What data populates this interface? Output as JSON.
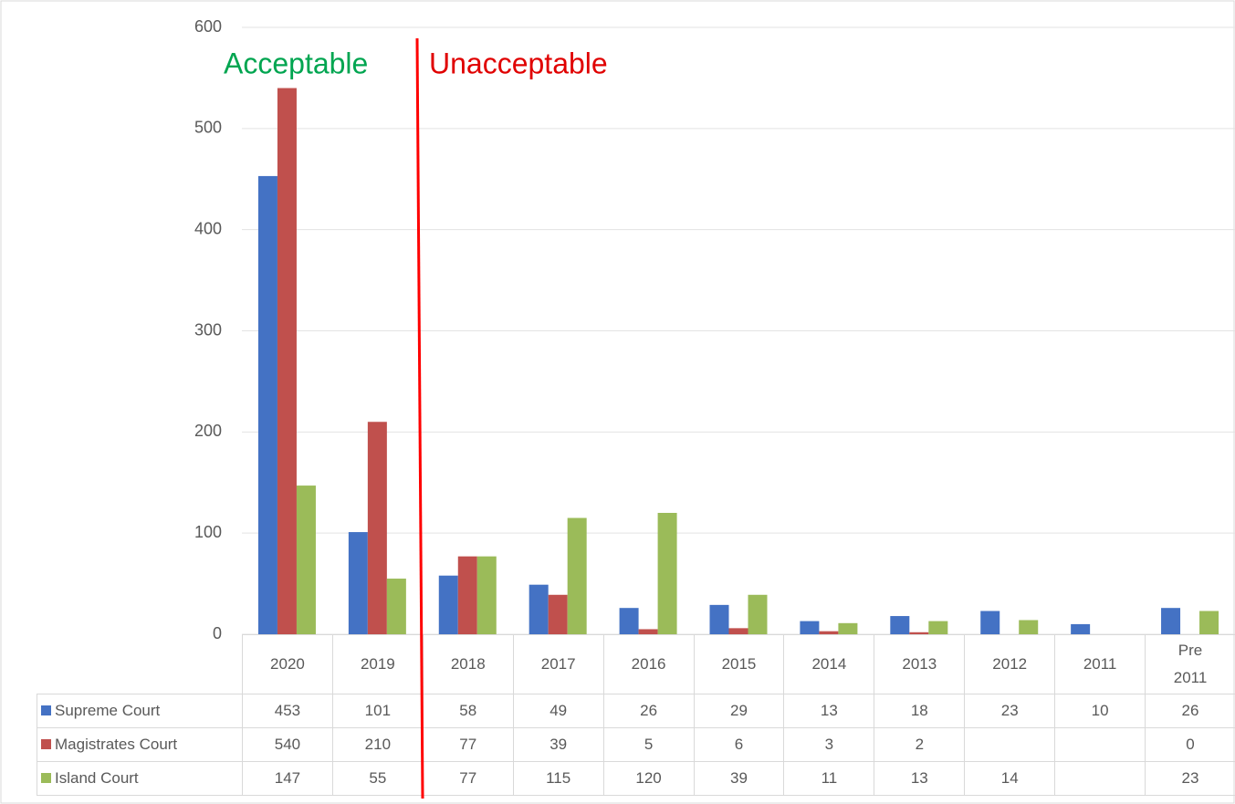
{
  "chart_data": {
    "type": "bar",
    "annotations": [
      "Acceptable",
      "Unacceptable"
    ],
    "categories": [
      "2020",
      "2019",
      "2018",
      "2017",
      "2016",
      "2015",
      "2014",
      "2013",
      "2012",
      "2011",
      "Pre 2011"
    ],
    "series": [
      {
        "name": "Supreme Court",
        "color": "#4472c4",
        "values": [
          453,
          101,
          58,
          49,
          26,
          29,
          13,
          18,
          23,
          10,
          26
        ]
      },
      {
        "name": "Magistrates Court",
        "color": "#c0504d",
        "values": [
          540,
          210,
          77,
          39,
          5,
          6,
          3,
          2,
          null,
          null,
          0
        ]
      },
      {
        "name": "Island Court",
        "color": "#9bbb59",
        "values": [
          147,
          55,
          77,
          115,
          120,
          39,
          11,
          13,
          14,
          null,
          23
        ]
      }
    ],
    "ylim": [
      0,
      600
    ],
    "yticks": [
      0,
      100,
      200,
      300,
      400,
      500,
      600
    ],
    "grid": true
  }
}
